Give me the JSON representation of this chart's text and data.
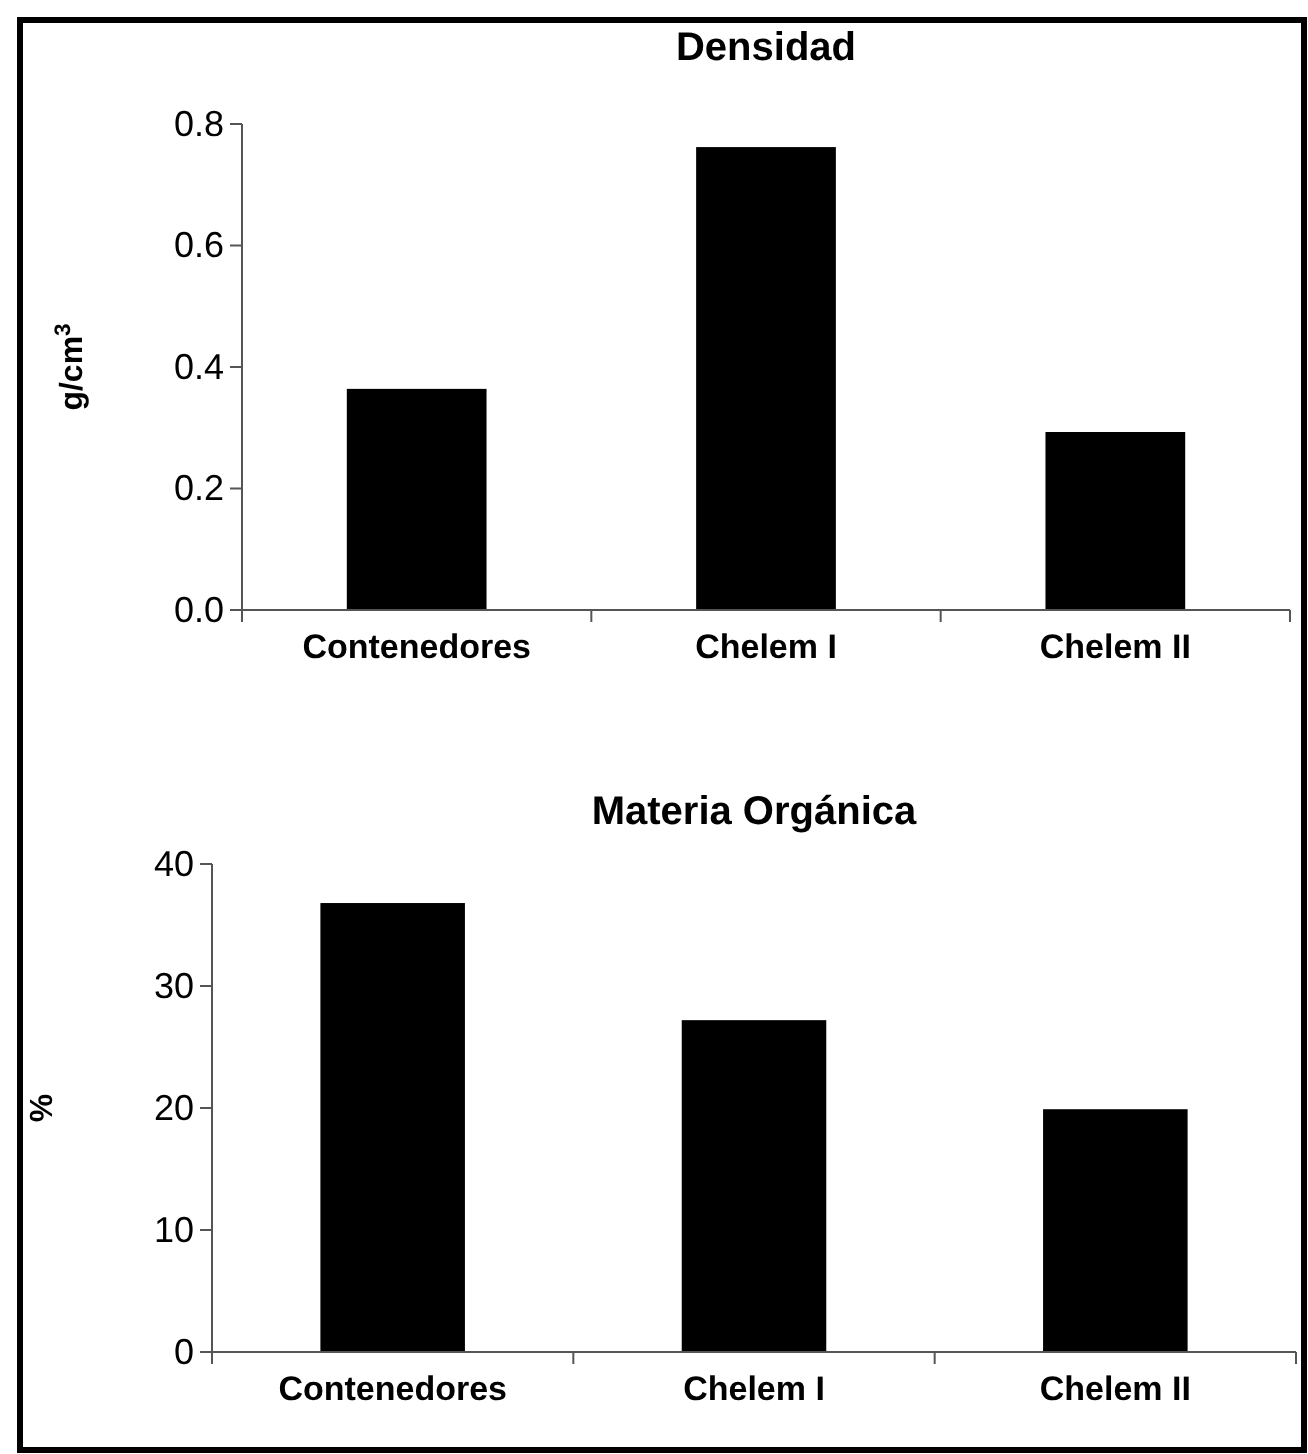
{
  "chart_data": [
    {
      "type": "bar",
      "title": "Densidad",
      "ylabel": "g/cm$^{3}$",
      "categories": [
        "Contenedores",
        "Chelem I",
        "Chelem II"
      ],
      "values": [
        0.364,
        0.762,
        0.293
      ],
      "color": "#000000",
      "ylim": [
        0,
        0.8
      ],
      "yticks": [
        {
          "value": 0,
          "label": "0.0"
        },
        0.2,
        0.4,
        0.6,
        0.8
      ]
    },
    {
      "type": "bar",
      "title": "Materia Orgánica",
      "ylabel": "%",
      "categories": [
        "Contenedores",
        "Chelem I",
        "Chelem II"
      ],
      "values": [
        36.8,
        27.2,
        19.9
      ],
      "color": "#000000",
      "ylim": [
        0,
        40
      ],
      "yticks": [
        0,
        10,
        20,
        30,
        40
      ]
    }
  ]
}
